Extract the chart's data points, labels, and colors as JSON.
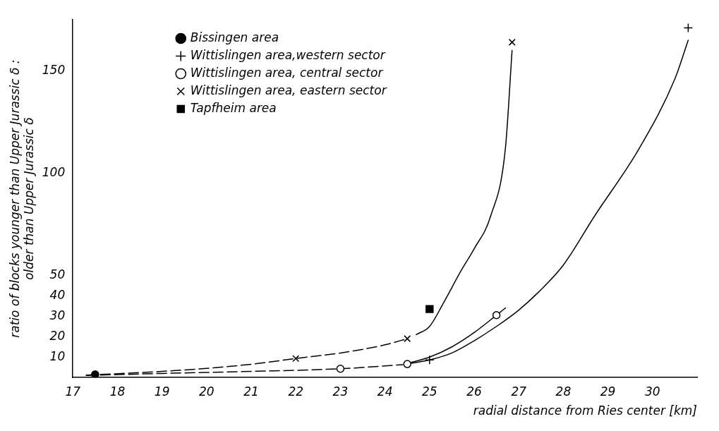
{
  "chart_data": {
    "type": "scatter",
    "xlabel": "radial distance from Ries center [km]",
    "ylabel": "ratio of blocks younger than Upper Jurassic δ :\nolder than Upper Jurassic δ",
    "xlim": [
      17,
      31
    ],
    "xticks": [
      17,
      18,
      19,
      20,
      21,
      22,
      23,
      24,
      25,
      26,
      27,
      28,
      29,
      30
    ],
    "ylim": [
      0,
      175
    ],
    "yticks": [
      10,
      20,
      30,
      40,
      50,
      100,
      150
    ],
    "grid": false,
    "legend": "top left",
    "series": [
      {
        "name": "Bissingen area",
        "color": "#000000",
        "marker": "circle",
        "x": [
          17.5
        ],
        "values": [
          1.5
        ]
      },
      {
        "name": "Wittislingen area,western sector",
        "color": "#000000",
        "marker": "cross",
        "x": [
          25,
          30.8
        ],
        "values": [
          8.6,
          171
        ]
      },
      {
        "name": "Wittislingen area, central sector",
        "color": "#000000",
        "marker": "circle-open",
        "x": [
          23,
          24.5,
          26.5
        ],
        "values": [
          4.3,
          6.6,
          30.5
        ]
      },
      {
        "name": "Wittislingen area, eastern sector",
        "color": "#000000",
        "marker": "x",
        "x": [
          22,
          24.5,
          26.85
        ],
        "values": [
          9.3,
          19,
          164
        ]
      },
      {
        "name": "Tapfheim area",
        "color": "#000000",
        "marker": "square",
        "x": [
          25
        ],
        "values": [
          33.5
        ]
      },
      {
        "type": "line",
        "color": "#000000",
        "line_style": "dashed",
        "x": [
          17.3,
          19,
          20,
          21,
          22,
          23,
          24,
          24.5
        ],
        "values": [
          1.2,
          3,
          4.5,
          6.5,
          9.3,
          12,
          16,
          19
        ]
      },
      {
        "type": "line",
        "color": "#000000",
        "line_style": "solid",
        "x": [
          24.7,
          25,
          25.3,
          25.7,
          26,
          26.37,
          26.7,
          26.85
        ],
        "values": [
          21,
          25,
          36,
          52,
          63,
          79,
          112,
          160
        ]
      },
      {
        "type": "line",
        "color": "#000000",
        "line_style": "dashed",
        "x": [
          17.3,
          19,
          21,
          23,
          24.4
        ],
        "values": [
          1,
          2,
          3,
          4.3,
          6.3
        ]
      },
      {
        "type": "line",
        "color": "#000000",
        "line_style": "solid",
        "x": [
          24.5,
          25,
          25.5,
          26,
          26.5,
          26.7
        ],
        "values": [
          6.9,
          10,
          15,
          22,
          30.5,
          34
        ]
      },
      {
        "type": "line",
        "color": "#000000",
        "line_style": "solid",
        "x": [
          24.6,
          25,
          25.5,
          26,
          26.5,
          27,
          27.5,
          28,
          28.7,
          29.7,
          30.5,
          30.8
        ],
        "values": [
          7,
          8.6,
          12,
          18,
          25,
          33,
          43,
          55,
          79,
          112,
          146,
          165
        ]
      }
    ]
  }
}
